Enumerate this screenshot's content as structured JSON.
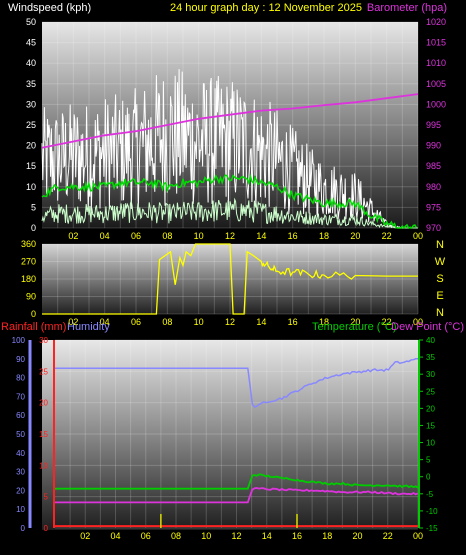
{
  "header": {
    "wind_label": "Windspeed (kph)",
    "title": "24 hour graph day : 12 November 2025",
    "baro_label": "Barometer (hpa)"
  },
  "labels": {
    "rainfall": "Rainfall (mm)",
    "humidity": "Humidity",
    "temperature": "Temperature (°C)",
    "dewpoint": "Dew Point (°C)"
  },
  "colors": {
    "wind": "#ffffff",
    "wind_avg": "#00dd00",
    "wind_low": "#ccffcc",
    "barometer": "#dd33dd",
    "direction": "#ffff00",
    "rainfall": "#ff2222",
    "humidity": "#8888ff",
    "temperature": "#00cc00",
    "dewpoint": "#dd33dd",
    "title": "#ffff00"
  },
  "chart_data": [
    {
      "type": "line",
      "panel": "wind_barometer",
      "x_ticks": [
        "02",
        "04",
        "06",
        "08",
        "10",
        "12",
        "14",
        "16",
        "18",
        "20",
        "22",
        "00"
      ],
      "y_left_ticks": [
        "0",
        "5",
        "10",
        "15",
        "20",
        "25",
        "30",
        "35",
        "40",
        "45",
        "50"
      ],
      "y_left_lim": [
        0,
        50
      ],
      "y_right_ticks": [
        "970",
        "975",
        "980",
        "985",
        "990",
        "995",
        "1000",
        "1005",
        "1010",
        "1015",
        "1020"
      ],
      "y_right_lim": [
        970,
        1020
      ],
      "series": [
        {
          "name": "Windspeed (kph)",
          "axis": "left",
          "x": [
            0,
            1,
            2,
            3,
            4,
            5,
            6,
            7,
            8,
            9,
            10,
            11,
            12,
            13,
            14,
            15,
            16,
            17,
            18,
            19,
            20,
            21,
            22,
            23,
            24
          ],
          "values": [
            19,
            19,
            20,
            20,
            21,
            21,
            22,
            24,
            26,
            25,
            24,
            24,
            24,
            23,
            21,
            19,
            16,
            13,
            11,
            10,
            9,
            5,
            1,
            0,
            0
          ]
        },
        {
          "name": "Wind average",
          "axis": "left",
          "x": [
            0,
            1,
            2,
            3,
            4,
            5,
            6,
            7,
            8,
            9,
            10,
            11,
            12,
            13,
            14,
            15,
            16,
            17,
            18,
            19,
            20,
            21,
            22,
            23,
            24
          ],
          "values": [
            8,
            10,
            10,
            10,
            10,
            11,
            11,
            11,
            10,
            11,
            11,
            12,
            12,
            12,
            11,
            10,
            8,
            7,
            6,
            6,
            6,
            3,
            1,
            0,
            0
          ]
        },
        {
          "name": "Barometer (hpa)",
          "axis": "right",
          "x": [
            0,
            2,
            4,
            6,
            8,
            10,
            12,
            14,
            16,
            18,
            20,
            22,
            24
          ],
          "values": [
            989.5,
            991,
            992.5,
            993.5,
            995,
            996.5,
            997.5,
            998.5,
            999,
            999.8,
            1000.5,
            1001.5,
            1002.5
          ]
        }
      ]
    },
    {
      "type": "line",
      "panel": "wind_direction",
      "x_ticks": [
        "02",
        "04",
        "06",
        "08",
        "10",
        "12",
        "14",
        "16",
        "18",
        "20",
        "22",
        "00"
      ],
      "y_left_ticks": [
        "0",
        "90",
        "180",
        "270",
        "360"
      ],
      "y_left_lim": [
        0,
        360
      ],
      "right_labels": [
        "N",
        "W",
        "S",
        "E",
        "N"
      ],
      "series": [
        {
          "name": "Wind direction",
          "x": [
            0,
            7.3,
            7.5,
            8.2,
            8.5,
            8.8,
            9.0,
            9.2,
            9.5,
            9.8,
            10.0,
            11.5,
            12.0,
            12.2,
            12.5,
            12.9,
            13.1,
            13.5,
            14.0,
            14.5,
            15.0,
            16.0,
            17.0,
            18.0,
            20.0,
            22.0,
            24.0
          ],
          "values": [
            0,
            0,
            280,
            320,
            150,
            290,
            250,
            320,
            300,
            360,
            360,
            360,
            360,
            0,
            0,
            0,
            320,
            300,
            270,
            240,
            220,
            215,
            205,
            200,
            198,
            195,
            195
          ]
        }
      ]
    },
    {
      "type": "line",
      "panel": "rain_humidity_temperature",
      "x_ticks": [
        "02",
        "04",
        "06",
        "08",
        "10",
        "12",
        "14",
        "16",
        "18",
        "20",
        "22",
        "00"
      ],
      "y_humidity_ticks": [
        "0",
        "10",
        "20",
        "30",
        "40",
        "50",
        "60",
        "70",
        "80",
        "90",
        "100"
      ],
      "y_humidity_lim": [
        0,
        100
      ],
      "y_rain_ticks": [
        "0",
        "5",
        "10",
        "15",
        "20",
        "25",
        "30"
      ],
      "y_rain_lim": [
        0,
        30
      ],
      "y_temp_ticks": [
        "-15",
        "-10",
        "-5",
        "0",
        "5",
        "10",
        "15",
        "20",
        "25",
        "30",
        "35",
        "40"
      ],
      "y_temp_lim": [
        -15,
        40
      ],
      "series": [
        {
          "name": "Humidity",
          "axis": "humidity",
          "x": [
            0,
            6,
            12,
            12.8,
            13.0,
            13.3,
            13.8,
            14.5,
            15.0,
            15.5,
            16,
            17,
            18,
            19,
            20,
            21,
            22,
            22.5,
            23,
            24
          ],
          "values": [
            85,
            85,
            85,
            85,
            66,
            64,
            67,
            68,
            69,
            71,
            73,
            77,
            80,
            82,
            83,
            84,
            84,
            88,
            88,
            90
          ]
        },
        {
          "name": "Temperature (°C)",
          "axis": "temp",
          "x": [
            0,
            6,
            12,
            12.8,
            13.0,
            13.5,
            14,
            14.5,
            15,
            15.5,
            16,
            17,
            18,
            19,
            20,
            21,
            22,
            23,
            24
          ],
          "values": [
            -3.5,
            -3.5,
            -3.5,
            -3.5,
            0.5,
            0.5,
            0.2,
            0,
            -0.5,
            -0.5,
            -1,
            -1.5,
            -2,
            -2,
            -2.5,
            -2.5,
            -2.5,
            -2.8,
            -3
          ]
        },
        {
          "name": "Dew Point (°C)",
          "axis": "temp",
          "x": [
            0,
            6,
            12,
            12.8,
            13.0,
            13.5,
            14,
            15,
            16,
            17,
            18,
            19,
            20,
            21,
            22,
            23,
            24
          ],
          "values": [
            -7.5,
            -7.5,
            -7.5,
            -7.5,
            -3.5,
            -3.5,
            -3.6,
            -3.8,
            -4,
            -4,
            -4.2,
            -4.5,
            -4.5,
            -4.5,
            -4.8,
            -5,
            -5
          ]
        },
        {
          "name": "Rainfall (mm)",
          "axis": "rain",
          "x": [
            0,
            24
          ],
          "values": [
            0.3,
            0.3
          ]
        }
      ]
    }
  ]
}
